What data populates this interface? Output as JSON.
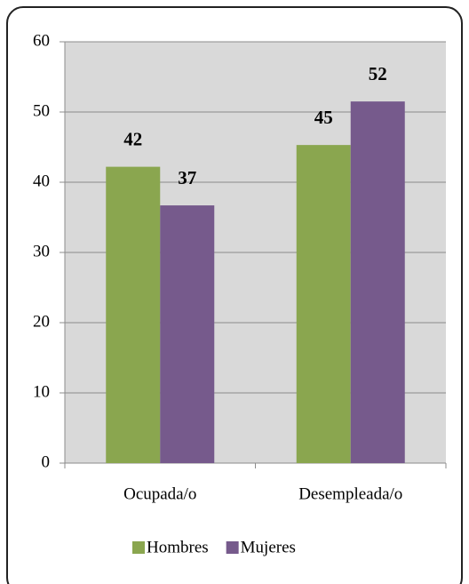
{
  "chart_data": {
    "type": "bar",
    "categories": [
      "Ocupada/o",
      "Desempleada/o"
    ],
    "series": [
      {
        "name": "Hombres",
        "color": "#8aa64f",
        "values": [
          42.2,
          45.3
        ],
        "value_labels": [
          "42",
          "45"
        ]
      },
      {
        "name": "Mujeres",
        "color": "#765a8c",
        "values": [
          36.7,
          51.5
        ],
        "value_labels": [
          "37",
          "52"
        ]
      }
    ],
    "ylim": [
      0,
      60
    ],
    "yticks": [
      0,
      10,
      20,
      30,
      40,
      50,
      60
    ],
    "grid": true,
    "legend": "bottom"
  }
}
